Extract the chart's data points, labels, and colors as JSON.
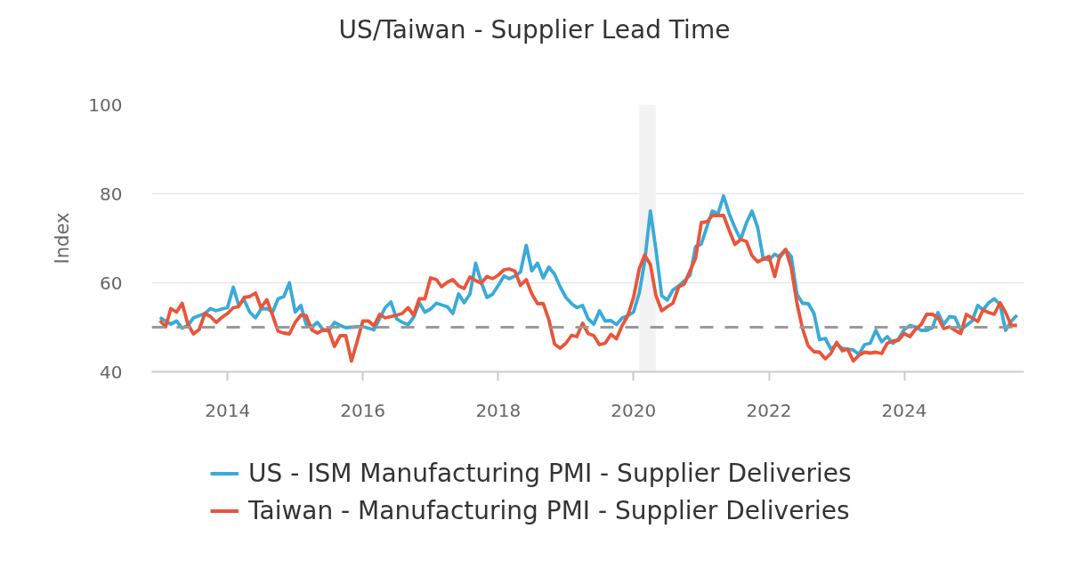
{
  "chart_data": {
    "type": "line",
    "title": "US/Taiwan - Supplier Lead Time",
    "ylabel": "Index",
    "xlim": [
      "2012-11-18",
      "2025-10-08"
    ],
    "xticks": [
      "2014",
      "2016",
      "2018",
      "2020",
      "2022",
      "2024"
    ],
    "ylim": [
      40,
      100
    ],
    "yticks": [
      40,
      60,
      80,
      100
    ],
    "grid": "y",
    "legend": "bottom",
    "line_style": "solid",
    "ref_lines": [
      {
        "axis": "y",
        "value": 50,
        "color": "#999999",
        "line_style": "dashed"
      }
    ],
    "bands": [
      {
        "axis": "x",
        "from": "2020-02-01",
        "to": "2020-04-30",
        "color": "#f2f2f2"
      }
    ],
    "series": [
      {
        "name": "US - ISM Manufacturing PMI - Supplier Deliveries",
        "color": "#3aaad8",
        "x": [
          "2013-01",
          "2013-02",
          "2013-03",
          "2013-04",
          "2013-05",
          "2013-06",
          "2013-07",
          "2013-08",
          "2013-09",
          "2013-10",
          "2013-11",
          "2013-12",
          "2014-01",
          "2014-02",
          "2014-03",
          "2014-04",
          "2014-05",
          "2014-06",
          "2014-07",
          "2014-08",
          "2014-09",
          "2014-10",
          "2014-11",
          "2014-12",
          "2015-01",
          "2015-02",
          "2015-03",
          "2015-04",
          "2015-05",
          "2015-06",
          "2015-07",
          "2015-08",
          "2015-09",
          "2015-10",
          "2015-11",
          "2015-12",
          "2016-01",
          "2016-02",
          "2016-03",
          "2016-05",
          "2016-06",
          "2016-07",
          "2016-08",
          "2016-09",
          "2016-10",
          "2016-11",
          "2016-12",
          "2017-01",
          "2017-02",
          "2017-04",
          "2017-05",
          "2017-06",
          "2017-07",
          "2017-08",
          "2017-09",
          "2017-10",
          "2017-11",
          "2017-12",
          "2018-01",
          "2018-02",
          "2018-03",
          "2018-04",
          "2018-05",
          "2018-06",
          "2018-07",
          "2018-08",
          "2018-09",
          "2018-10",
          "2018-11",
          "2018-12",
          "2019-01",
          "2019-02",
          "2019-03",
          "2019-04",
          "2019-05",
          "2019-06",
          "2019-07",
          "2019-08",
          "2019-09",
          "2019-10",
          "2019-11",
          "2019-12",
          "2020-01",
          "2020-02",
          "2020-03",
          "2020-04",
          "2020-05",
          "2020-06",
          "2020-07",
          "2020-08",
          "2020-09",
          "2020-10",
          "2020-11",
          "2020-12",
          "2021-01",
          "2021-02",
          "2021-03",
          "2021-04",
          "2021-05",
          "2021-06",
          "2021-07",
          "2021-08",
          "2021-09",
          "2021-10",
          "2021-11",
          "2021-12",
          "2022-01",
          "2022-02",
          "2022-03",
          "2022-04",
          "2022-05",
          "2022-06",
          "2022-07",
          "2022-08",
          "2022-09",
          "2022-10",
          "2022-11",
          "2022-12",
          "2023-01",
          "2023-02",
          "2023-03",
          "2023-04",
          "2023-05",
          "2023-06",
          "2023-07",
          "2023-08",
          "2023-09",
          "2023-10",
          "2023-11",
          "2023-12",
          "2024-01",
          "2024-02",
          "2024-03",
          "2024-04",
          "2024-05",
          "2024-06",
          "2024-07",
          "2024-08",
          "2024-09",
          "2024-10",
          "2024-11",
          "2024-12",
          "2025-01",
          "2025-02",
          "2025-03",
          "2025-04",
          "2025-05",
          "2025-06",
          "2025-07",
          "2025-08",
          "2025-09"
        ],
        "values": [
          52.2,
          51.4,
          50.7,
          51.4,
          49.8,
          50.4,
          52.1,
          52.6,
          53.1,
          54.2,
          53.7,
          54.1,
          54.4,
          59.0,
          55.1,
          56.1,
          53.4,
          52.1,
          54.1,
          54.2,
          53.4,
          56.4,
          56.9,
          60.0,
          53.4,
          54.9,
          50.7,
          50.1,
          51.1,
          49.4,
          49.2,
          51.1,
          50.4,
          49.9,
          50.0,
          50.1,
          50.1,
          49.8,
          49.4,
          54.4,
          55.7,
          51.9,
          51.1,
          50.6,
          52.2,
          55.5,
          53.4,
          54.1,
          55.4,
          54.6,
          53.1,
          57.5,
          55.5,
          57.4,
          64.4,
          60.1,
          56.7,
          57.4,
          59.4,
          61.5,
          60.9,
          61.5,
          62.4,
          68.4,
          62.7,
          64.4,
          61.1,
          63.5,
          61.9,
          59.1,
          56.7,
          55.3,
          54.4,
          54.9,
          51.9,
          50.7,
          53.7,
          51.4,
          51.5,
          50.6,
          52.1,
          52.6,
          53.4,
          57.7,
          64.7,
          76.1,
          67.4,
          57.1,
          56.1,
          58.4,
          59.3,
          60.4,
          61.7,
          68.1,
          68.7,
          72.7,
          76.1,
          75.5,
          79.5,
          75.4,
          72.4,
          69.7,
          73.4,
          76.1,
          72.4,
          65.4,
          65.1,
          66.4,
          65.7,
          67.4,
          65.9,
          57.4,
          55.4,
          55.3,
          53.1,
          47.2,
          47.5,
          45.1,
          46.1,
          45.3,
          45.1,
          44.9,
          43.9,
          46.1,
          46.4,
          49.3,
          46.7,
          47.9,
          46.4,
          47.4,
          49.5,
          50.4,
          50.1,
          49.3,
          49.3,
          49.9,
          53.3,
          50.6,
          52.4,
          52.2,
          49.4,
          50.4,
          51.4,
          54.9,
          53.9,
          55.5,
          56.4,
          55.1,
          49.3,
          51.4,
          52.7
        ]
      },
      {
        "name": "Taiwan - Manufacturing PMI - Supplier Deliveries",
        "color": "#e9553a",
        "x": [
          "2013-01",
          "2013-02",
          "2013-03",
          "2013-04",
          "2013-05",
          "2013-06",
          "2013-07",
          "2013-08",
          "2013-09",
          "2013-10",
          "2013-11",
          "2013-12",
          "2014-01",
          "2014-02",
          "2014-03",
          "2014-04",
          "2014-05",
          "2014-06",
          "2014-07",
          "2014-08",
          "2014-09",
          "2014-10",
          "2014-11",
          "2014-12",
          "2015-01",
          "2015-02",
          "2015-03",
          "2015-04",
          "2015-05",
          "2015-06",
          "2015-07",
          "2015-08",
          "2015-09",
          "2015-10",
          "2015-11",
          "2015-12",
          "2016-01",
          "2016-02",
          "2016-03",
          "2016-04",
          "2016-05",
          "2016-06",
          "2016-07",
          "2016-08",
          "2016-09",
          "2016-10",
          "2016-11",
          "2016-12",
          "2017-01",
          "2017-02",
          "2017-03",
          "2017-04",
          "2017-05",
          "2017-06",
          "2017-07",
          "2017-08",
          "2017-09",
          "2017-10",
          "2017-11",
          "2017-12",
          "2018-01",
          "2018-02",
          "2018-03",
          "2018-04",
          "2018-05",
          "2018-06",
          "2018-07",
          "2018-08",
          "2018-09",
          "2018-10",
          "2018-11",
          "2018-12",
          "2019-01",
          "2019-02",
          "2019-03",
          "2019-04",
          "2019-05",
          "2019-06",
          "2019-07",
          "2019-08",
          "2019-09",
          "2019-10",
          "2019-11",
          "2019-12",
          "2020-01",
          "2020-02",
          "2020-03",
          "2020-04",
          "2020-05",
          "2020-06",
          "2020-07",
          "2020-08",
          "2020-09",
          "2020-10",
          "2020-11",
          "2020-12",
          "2021-01",
          "2021-02",
          "2021-03",
          "2021-04",
          "2021-05",
          "2021-06",
          "2021-07",
          "2021-08",
          "2021-09",
          "2021-10",
          "2021-11",
          "2021-12",
          "2022-01",
          "2022-02",
          "2022-03",
          "2022-04",
          "2022-05",
          "2022-06",
          "2022-07",
          "2022-08",
          "2022-09",
          "2022-10",
          "2022-11",
          "2022-12",
          "2023-01",
          "2023-02",
          "2023-03",
          "2023-04",
          "2023-05",
          "2023-06",
          "2023-07",
          "2023-08",
          "2023-09",
          "2023-10",
          "2023-11",
          "2023-12",
          "2024-01",
          "2024-02",
          "2024-03",
          "2024-04",
          "2024-05",
          "2024-06",
          "2024-07",
          "2024-08",
          "2024-09",
          "2024-10",
          "2024-11",
          "2024-12",
          "2025-01",
          "2025-02",
          "2025-03",
          "2025-04",
          "2025-05",
          "2025-06",
          "2025-07",
          "2025-08",
          "2025-09"
        ],
        "values": [
          51.5,
          50.1,
          54.2,
          53.4,
          55.4,
          50.7,
          48.5,
          49.5,
          53.1,
          52.4,
          51.1,
          52.2,
          53.1,
          54.4,
          54.6,
          56.7,
          56.9,
          57.7,
          54.4,
          56.2,
          52.7,
          49.1,
          48.7,
          48.5,
          51.1,
          52.7,
          52.6,
          49.4,
          48.7,
          49.4,
          49.3,
          45.7,
          48.1,
          48.1,
          42.4,
          46.7,
          51.4,
          51.4,
          50.3,
          52.9,
          52.1,
          52.4,
          52.7,
          53.1,
          54.4,
          52.7,
          56.4,
          56.4,
          61.1,
          60.7,
          59.1,
          60.1,
          60.7,
          59.3,
          58.7,
          61.3,
          60.5,
          59.9,
          61.4,
          60.9,
          61.7,
          62.9,
          63.1,
          62.6,
          59.4,
          60.7,
          57.5,
          55.3,
          55.3,
          51.7,
          46.2,
          45.3,
          46.4,
          48.2,
          47.9,
          50.9,
          48.6,
          48.1,
          46.1,
          46.4,
          48.4,
          47.4,
          50.4,
          52.6,
          56.7,
          63.1,
          66.2,
          64.1,
          57.1,
          53.7,
          54.6,
          55.4,
          59.1,
          59.7,
          62.7,
          65.5,
          73.5,
          73.7,
          75.1,
          75.1,
          75.1,
          71.7,
          68.6,
          69.7,
          69.3,
          66.1,
          64.7,
          65.3,
          65.9,
          61.4,
          66.1,
          67.5,
          63.4,
          55.4,
          49.7,
          45.8,
          44.5,
          44.4,
          42.9,
          44.1,
          46.6,
          44.7,
          45.1,
          42.4,
          43.7,
          44.4,
          44.2,
          44.4,
          44.1,
          46.4,
          46.9,
          47.1,
          48.6,
          47.9,
          49.5,
          50.6,
          52.9,
          52.9,
          52.2,
          49.7,
          50.1,
          49.3,
          48.6,
          52.9,
          52.1,
          51.3,
          53.9,
          53.3,
          52.9,
          55.5,
          53.3,
          50.4,
          50.4
        ]
      }
    ]
  }
}
